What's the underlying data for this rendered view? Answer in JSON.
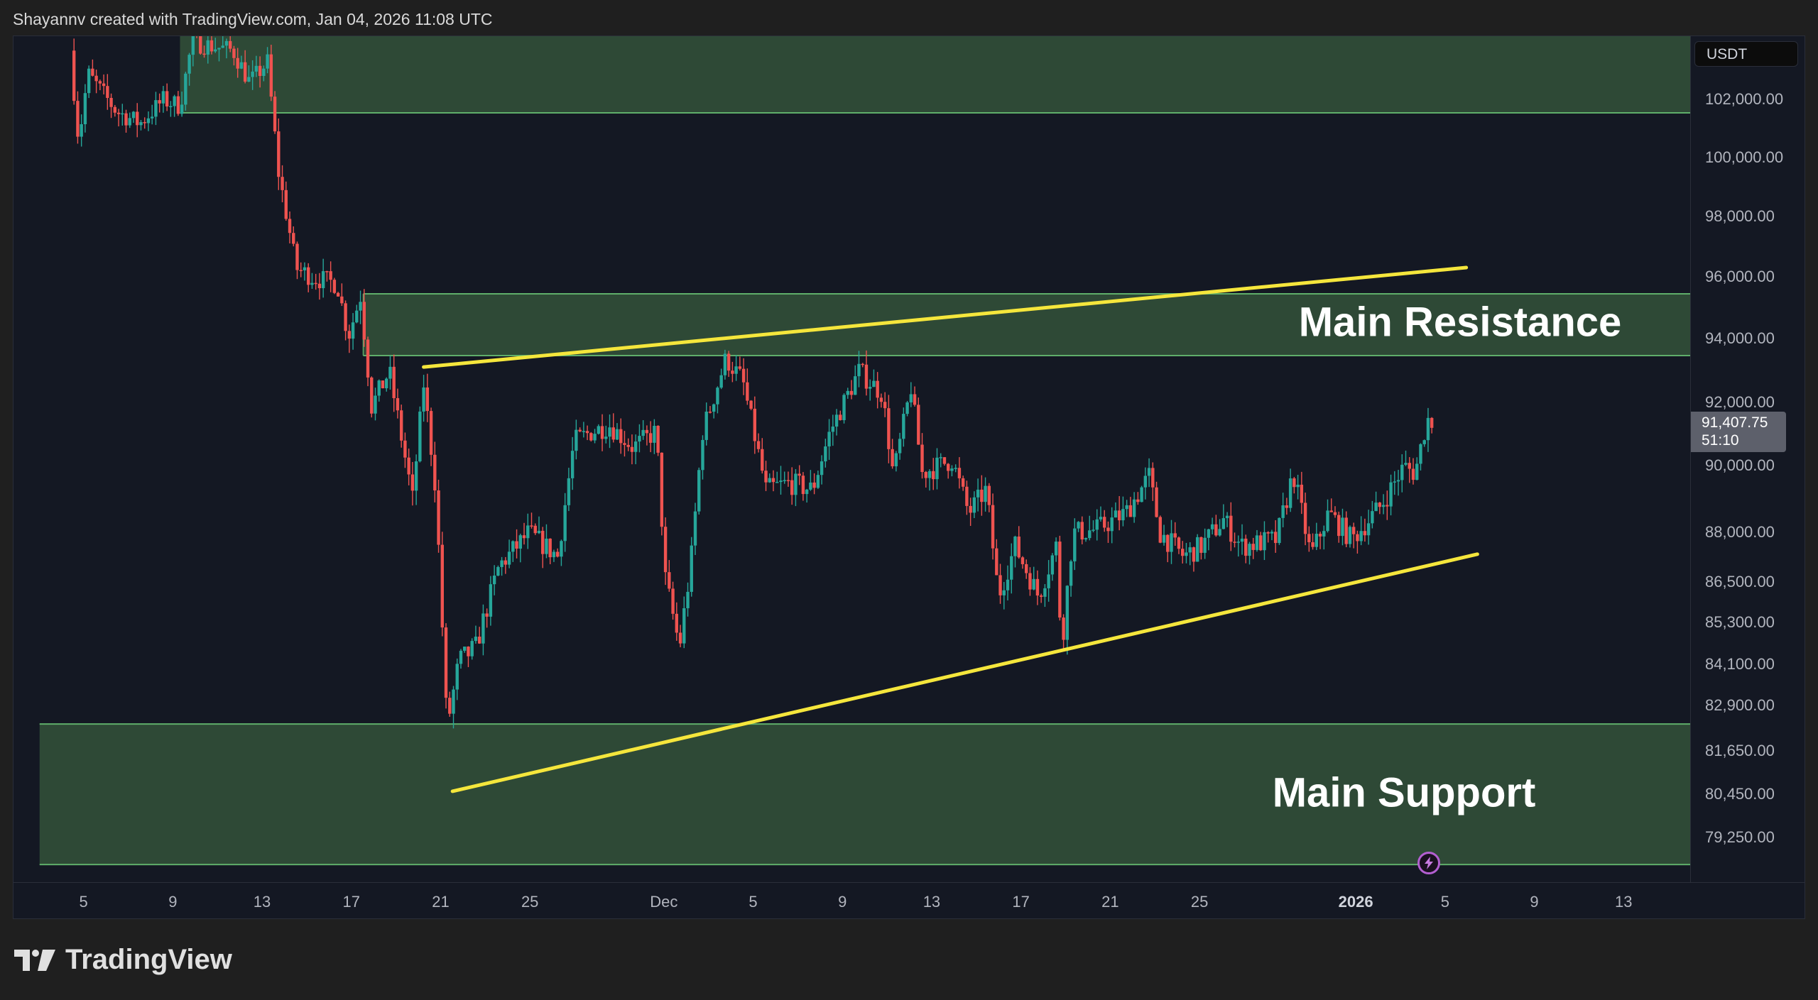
{
  "header": {
    "attribution": "Shayannv created with TradingView.com, Jan 04, 2026 11:08 UTC"
  },
  "price_axis": {
    "currency": "USDT",
    "current_price": "91,407.75",
    "countdown": "51:10"
  },
  "logo": {
    "text": "TradingView"
  },
  "colors": {
    "up": "#26a69a",
    "down": "#ef5350",
    "zone_fill": "#2f4c38",
    "zone_border": "#5fae6a",
    "trendline": "#f5e63c",
    "background": "#141823"
  },
  "icons": {
    "alert": "lightning-bolt-icon",
    "logo": "tradingview-logo-icon"
  },
  "chart_data": {
    "type": "candlestick",
    "symbol_quote": "USDT",
    "y_ticks": [
      {
        "value": 102000,
        "label": "102,000.00"
      },
      {
        "value": 100000,
        "label": "100,000.00"
      },
      {
        "value": 98000,
        "label": "98,000.00"
      },
      {
        "value": 96000,
        "label": "96,000.00"
      },
      {
        "value": 94000,
        "label": "94,000.00"
      },
      {
        "value": 92000,
        "label": "92,000.00"
      },
      {
        "value": 90000,
        "label": "90,000.00"
      },
      {
        "value": 88000,
        "label": "88,000.00"
      },
      {
        "value": 86500,
        "label": "86,500.00"
      },
      {
        "value": 85300,
        "label": "85,300.00"
      },
      {
        "value": 84100,
        "label": "84,100.00"
      },
      {
        "value": 82900,
        "label": "82,900.00"
      },
      {
        "value": 81650,
        "label": "81,650.00"
      },
      {
        "value": 80450,
        "label": "80,450.00"
      },
      {
        "value": 79250,
        "label": "79,250.00"
      }
    ],
    "x_ticks": [
      {
        "date": "2025-11-05",
        "label": "5"
      },
      {
        "date": "2025-11-09",
        "label": "9"
      },
      {
        "date": "2025-11-13",
        "label": "13"
      },
      {
        "date": "2025-11-17",
        "label": "17"
      },
      {
        "date": "2025-11-21",
        "label": "21"
      },
      {
        "date": "2025-11-25",
        "label": "25"
      },
      {
        "date": "2025-12-01",
        "label": "Dec"
      },
      {
        "date": "2025-12-05",
        "label": "5"
      },
      {
        "date": "2025-12-09",
        "label": "9"
      },
      {
        "date": "2025-12-13",
        "label": "13"
      },
      {
        "date": "2025-12-17",
        "label": "17"
      },
      {
        "date": "2025-12-21",
        "label": "21"
      },
      {
        "date": "2025-12-25",
        "label": "25"
      },
      {
        "date": "2026-01-01",
        "label": "2026",
        "bold": true
      },
      {
        "date": "2026-01-05",
        "label": "5"
      },
      {
        "date": "2026-01-09",
        "label": "9"
      },
      {
        "date": "2026-01-13",
        "label": "13"
      }
    ],
    "price_path": [
      [
        "2025-11-04T09:00",
        103700
      ],
      [
        "2025-11-04T18:00",
        100600
      ],
      [
        "2025-11-05T04:00",
        102900
      ],
      [
        "2025-11-06T11:00",
        101600
      ],
      [
        "2025-11-07T12:00",
        101200
      ],
      [
        "2025-11-08T13:00",
        102000
      ],
      [
        "2025-11-09T07:00",
        101800
      ],
      [
        "2025-11-09T20:00",
        104000
      ],
      [
        "2025-11-11T16:00",
        103700
      ],
      [
        "2025-11-12T10:00",
        102600
      ],
      [
        "2025-11-13T05:00",
        103300
      ],
      [
        "2025-11-13T17:00",
        99500
      ],
      [
        "2025-11-14T12:00",
        96300
      ],
      [
        "2025-11-15T07:00",
        96000
      ],
      [
        "2025-11-16T08:00",
        95800
      ],
      [
        "2025-11-16T20:00",
        94100
      ],
      [
        "2025-11-17T09:00",
        95400
      ],
      [
        "2025-11-17T21:00",
        91900
      ],
      [
        "2025-11-18T16:00",
        93000
      ],
      [
        "2025-11-19T17:00",
        89000
      ],
      [
        "2025-11-20T05:00",
        92600
      ],
      [
        "2025-11-20T18:00",
        89300
      ],
      [
        "2025-11-21T06:00",
        82300
      ],
      [
        "2025-11-21T19:00",
        84200
      ],
      [
        "2025-11-22T13:00",
        84600
      ],
      [
        "2025-11-23T14:00",
        87000
      ],
      [
        "2025-11-24T22:00",
        88000
      ],
      [
        "2025-11-26T05:00",
        87300
      ],
      [
        "2025-11-26T23:00",
        90800
      ],
      [
        "2025-11-27T18:00",
        91100
      ],
      [
        "2025-11-28T13:00",
        91300
      ],
      [
        "2025-11-29T14:00",
        90600
      ],
      [
        "2025-11-30T15:00",
        91100
      ],
      [
        "2025-12-01T01:00",
        86600
      ],
      [
        "2025-12-01T16:00",
        84600
      ],
      [
        "2025-12-02T04:00",
        87000
      ],
      [
        "2025-12-02T17:00",
        91100
      ],
      [
        "2025-12-03T18:00",
        93400
      ],
      [
        "2025-12-04T12:00",
        92700
      ],
      [
        "2025-12-05T13:00",
        89300
      ],
      [
        "2025-12-06T14:00",
        89500
      ],
      [
        "2025-12-07T15:00",
        89300
      ],
      [
        "2025-12-08T10:00",
        91100
      ],
      [
        "2025-12-09T17:00",
        93000
      ],
      [
        "2025-12-10T18:00",
        92300
      ],
      [
        "2025-12-11T06:00",
        89700
      ],
      [
        "2025-12-12T01:00",
        92500
      ],
      [
        "2025-12-12T13:00",
        89800
      ],
      [
        "2025-12-13T21:00",
        90200
      ],
      [
        "2025-12-14T15:00",
        88600
      ],
      [
        "2025-12-15T10:00",
        89300
      ],
      [
        "2025-12-15T23:00",
        86100
      ],
      [
        "2025-12-16T17:00",
        87600
      ],
      [
        "2025-12-17T18:00",
        86100
      ],
      [
        "2025-12-18T13:00",
        87600
      ],
      [
        "2025-12-18T19:00",
        84600
      ],
      [
        "2025-12-19T07:00",
        88000
      ],
      [
        "2025-12-20T08:00",
        88100
      ],
      [
        "2025-12-21T16:00",
        88600
      ],
      [
        "2025-12-22T17:00",
        89700
      ],
      [
        "2025-12-23T05:00",
        88000
      ],
      [
        "2025-12-24T06:00",
        87300
      ],
      [
        "2025-12-25T01:00",
        87600
      ],
      [
        "2025-12-26T01:00",
        88400
      ],
      [
        "2025-12-26T20:00",
        87600
      ],
      [
        "2025-12-28T10:00",
        87800
      ],
      [
        "2025-12-29T04:00",
        89800
      ],
      [
        "2025-12-29T23:00",
        87300
      ],
      [
        "2025-12-30T18:00",
        88600
      ],
      [
        "2025-12-31T19:00",
        87800
      ],
      [
        "2026-01-02T02:00",
        88800
      ],
      [
        "2026-01-03T03:00",
        90000
      ],
      [
        "2026-01-03T15:00",
        89800
      ],
      [
        "2026-01-04T04:00",
        91500
      ],
      [
        "2026-01-04T10:00",
        91408
      ]
    ],
    "zones": [
      {
        "name": "top-zone",
        "from": "2025-11-09T07:00",
        "top": 104500,
        "bottom": 101560,
        "label": ""
      },
      {
        "name": "main-resistance",
        "from": "2025-11-17T12:00",
        "top": 95470,
        "bottom": 93490,
        "label": "Main Resistance"
      },
      {
        "name": "main-support",
        "from": "2025-11-03T00:00",
        "top": 82410,
        "bottom": 78520,
        "label": "Main Support"
      }
    ],
    "trendlines": [
      {
        "name": "upper-trendline",
        "start": [
          "2025-11-20T05:00",
          93130
        ],
        "end": [
          "2026-01-05T22:00",
          96330
        ]
      },
      {
        "name": "lower-trendline",
        "start": [
          "2025-11-21T12:00",
          80550
        ],
        "end": [
          "2026-01-06T10:00",
          87360
        ]
      }
    ]
  }
}
